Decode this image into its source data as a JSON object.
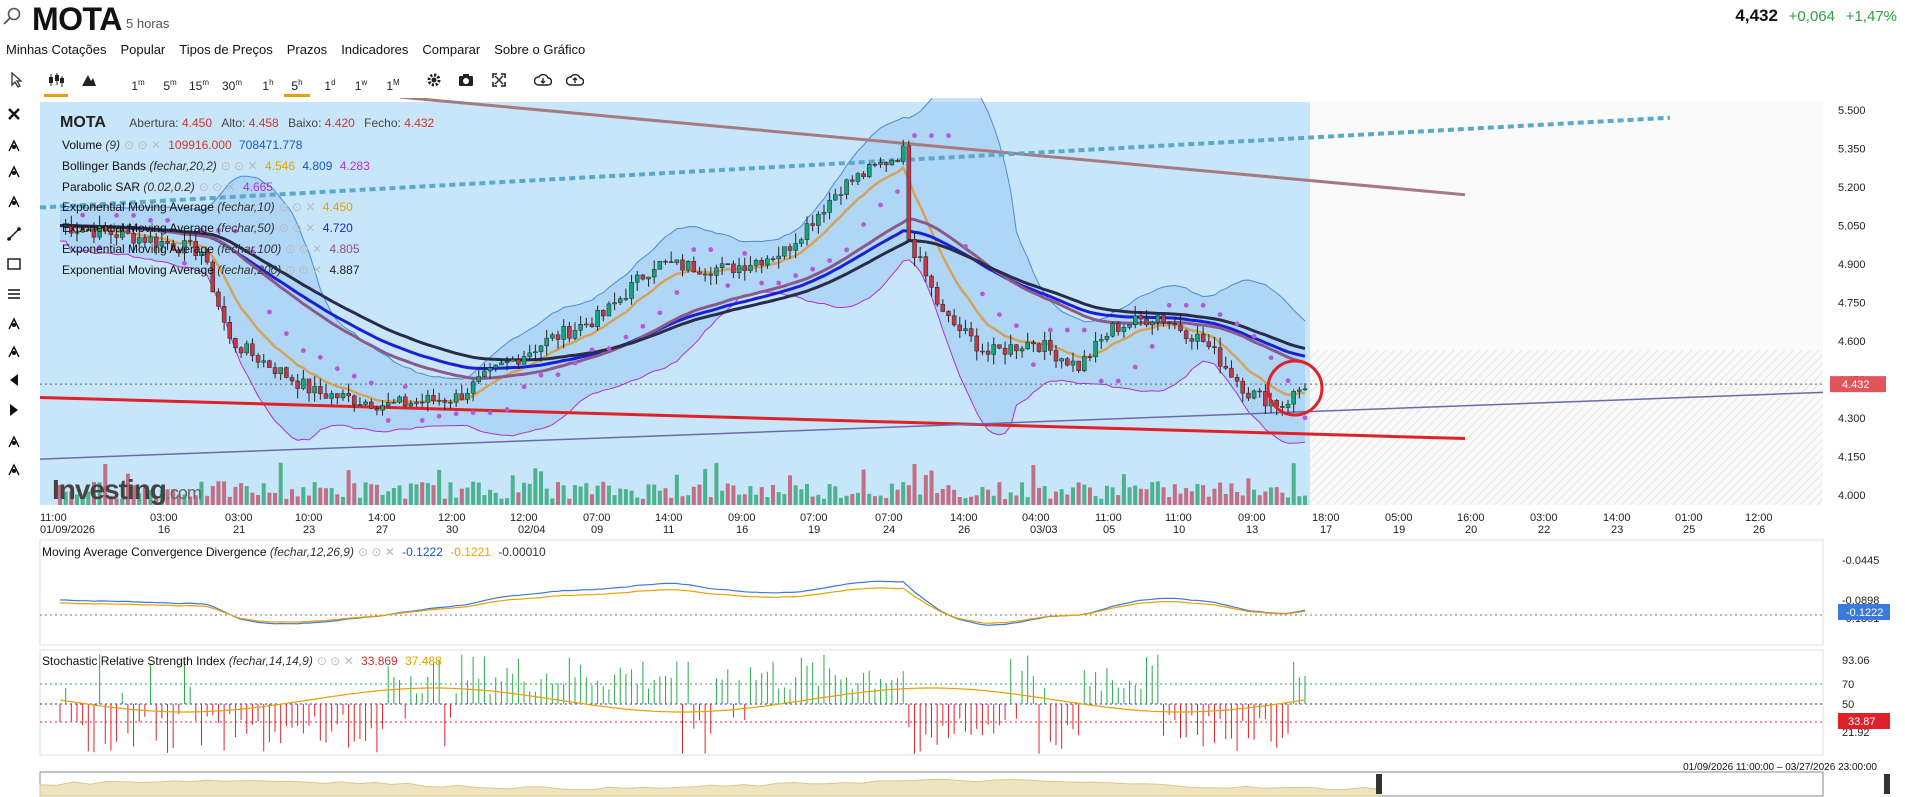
{
  "header": {
    "title": "MOTA",
    "subtitle": "5 horas",
    "price": "4,432",
    "change": "+0,064",
    "change_pct": "+1,47%"
  },
  "menu": [
    "Minhas Cotações",
    "Popular",
    "Tipos de Preços",
    "Prazos",
    "Indicadores",
    "Comparar",
    "Sobre o Gráfico"
  ],
  "toolbar": {
    "timeframes": [
      {
        "n": "1",
        "u": "m"
      },
      {
        "n": "5",
        "u": "m"
      },
      {
        "n": "15",
        "u": "m"
      },
      {
        "n": "30",
        "u": "m"
      },
      {
        "n": "1",
        "u": "h"
      },
      {
        "n": "5",
        "u": "h"
      },
      {
        "n": "1",
        "u": "d"
      },
      {
        "n": "1",
        "u": "w"
      },
      {
        "n": "1",
        "u": "M"
      }
    ],
    "active": "5h"
  },
  "ohlc": {
    "name": "MOTA",
    "open_label": "Abertura:",
    "open": "4.450",
    "high_label": "Alto:",
    "high": "4.458",
    "low_label": "Baixo:",
    "low": "4.420",
    "close_label": "Fecho:",
    "close": "4.432"
  },
  "indicators": [
    {
      "name": "Volume",
      "params": "(9)",
      "values": [
        {
          "v": "109916.000",
          "c": "#d0342c"
        },
        {
          "v": "708471.778",
          "c": "#1a56c8"
        }
      ]
    },
    {
      "name": "Bollinger Bands",
      "params": "(fechar,20,2)",
      "values": [
        {
          "v": "4.546",
          "c": "#e8a100"
        },
        {
          "v": "4.809",
          "c": "#1a56c8"
        },
        {
          "v": "4.283",
          "c": "#b230c8"
        }
      ]
    },
    {
      "name": "Parabolic SAR",
      "params": "(0.02,0.2)",
      "values": [
        {
          "v": "4.665",
          "c": "#b230c8"
        }
      ]
    },
    {
      "name": "Exponential Moving Average",
      "params": "(fechar,10)",
      "values": [
        {
          "v": "4.450",
          "c": "#e8a100"
        }
      ]
    },
    {
      "name": "Exponential Moving Average",
      "params": "(fechar,50)",
      "values": [
        {
          "v": "4.720",
          "c": "#1a20d8"
        }
      ]
    },
    {
      "name": "Exponential Moving Average",
      "params": "(fechar,100)",
      "values": [
        {
          "v": "4.805",
          "c": "#8a4a8a"
        }
      ]
    },
    {
      "name": "Exponential Moving Average",
      "params": "(fechar,200)",
      "values": [
        {
          "v": "4.887",
          "c": "#222"
        }
      ]
    }
  ],
  "price_axis": [
    "5.500",
    "5.350",
    "5.200",
    "5.050",
    "4.900",
    "4.750",
    "4.600",
    "4.450",
    "4.300",
    "4.150",
    "4.000"
  ],
  "last_price_tag": "4.432",
  "time_axis": [
    [
      "11:00",
      "01/09/2026"
    ],
    [
      "03:00",
      "16"
    ],
    [
      "03:00",
      "21"
    ],
    [
      "10:00",
      "23"
    ],
    [
      "14:00",
      "27"
    ],
    [
      "12:00",
      "30"
    ],
    [
      "12:00",
      "02/04"
    ],
    [
      "07:00",
      "09"
    ],
    [
      "14:00",
      "11"
    ],
    [
      "09:00",
      "16"
    ],
    [
      "07:00",
      "19"
    ],
    [
      "07:00",
      "24"
    ],
    [
      "14:00",
      "26"
    ],
    [
      "04:00",
      "03/03"
    ],
    [
      "11:00",
      "05"
    ],
    [
      "11:00",
      "10"
    ],
    [
      "09:00",
      "13"
    ],
    [
      "18:00",
      "17"
    ],
    [
      "05:00",
      "19"
    ],
    [
      "16:00",
      "20"
    ],
    [
      "03:00",
      "22"
    ],
    [
      "14:00",
      "23"
    ],
    [
      "01:00",
      "25"
    ],
    [
      "12:00",
      "26"
    ]
  ],
  "macd": {
    "name": "Moving Average Convergence Divergence",
    "params": "(fechar,12,26,9)",
    "values": [
      {
        "v": "-0.1222",
        "c": "#1a56c8"
      },
      {
        "v": "-0.1221",
        "c": "#e8a100"
      },
      {
        "v": "-0.00010",
        "c": "#333"
      }
    ],
    "axis": [
      "-0.0445",
      "-0.0898",
      "-0.1351"
    ],
    "tag": "-0.1222"
  },
  "stoch": {
    "name": "Stochastic Relative Strength Index",
    "params": "(fechar,14,14,9)",
    "values": [
      {
        "v": "33.869",
        "c": "#d0342c"
      },
      {
        "v": "37.488",
        "c": "#e8a100"
      }
    ],
    "axis": [
      "93.06",
      "70",
      "50",
      "21.92"
    ],
    "tag": "33.87"
  },
  "range": "01/09/2026 11:00:00 – 03/27/2026 23:00:00",
  "logo": {
    "main": "Investing",
    "suffix": ".com"
  },
  "colors": {
    "up": "#1aa37a",
    "down": "#c0394b",
    "bg": "#c8e6fa",
    "band": "#9dc8f2"
  }
}
